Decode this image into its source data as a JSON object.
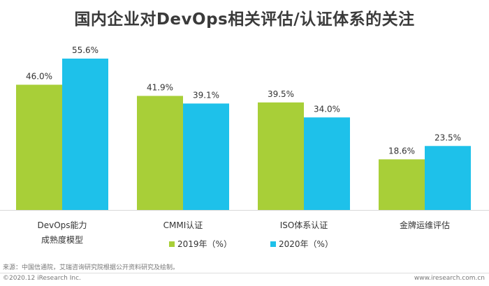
{
  "page": {
    "title": "国内企业对DevOps相关评估/认证体系的关注",
    "source": "来源：中国信通院，艾瑞咨询研究院根据公开资料研究及绘制。",
    "copyright": "©2020.12 iResearch Inc.",
    "site": "www.iresearch.com.cn"
  },
  "chart_data": {
    "type": "bar",
    "title": "国内企业对DevOps相关评估/认证体系的关注",
    "categories": [
      "DevOps能力\n成熟度模型",
      "CMMI认证",
      "ISO体系认证",
      "金牌运维评估"
    ],
    "series": [
      {
        "name": "2019年（%）",
        "color": "#a8cf38",
        "values": [
          46.0,
          41.9,
          39.5,
          18.6
        ],
        "labels": [
          "46.0%",
          "41.9%",
          "39.5%",
          "18.6%"
        ]
      },
      {
        "name": "2020年（%）",
        "color": "#1ec1ea",
        "values": [
          55.6,
          39.1,
          34.0,
          23.5
        ],
        "labels": [
          "55.6%",
          "39.1%",
          "34.0%",
          "23.5%"
        ]
      }
    ],
    "ylim": [
      0,
      58
    ],
    "grid": false,
    "legend_position": "bottom"
  }
}
